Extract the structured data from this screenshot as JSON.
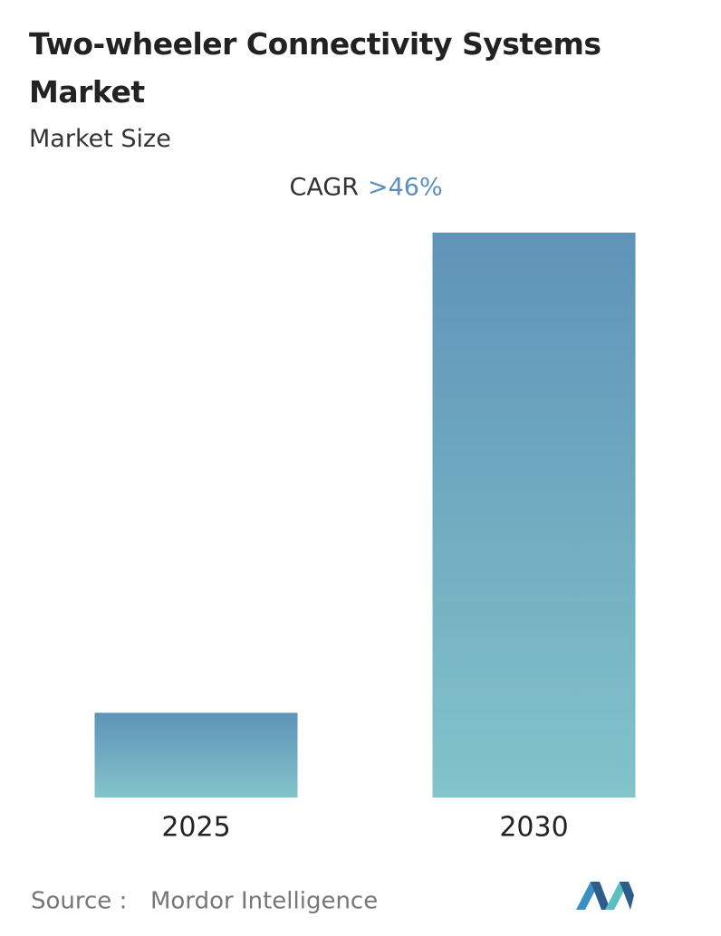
{
  "chart_data": {
    "type": "bar",
    "title": "Two-wheeler Connectivity Systems Market",
    "subtitle": "Market Size",
    "cagr_label": "CAGR",
    "cagr_value": ">46%",
    "categories": [
      "2025",
      "2030"
    ],
    "values": [
      15,
      100
    ],
    "ylim": [
      0,
      100
    ],
    "color_top": "#5f93b8",
    "color_bottom": "#82c4ca",
    "source_label": "Source :",
    "source": "Mordor Intelligence"
  }
}
